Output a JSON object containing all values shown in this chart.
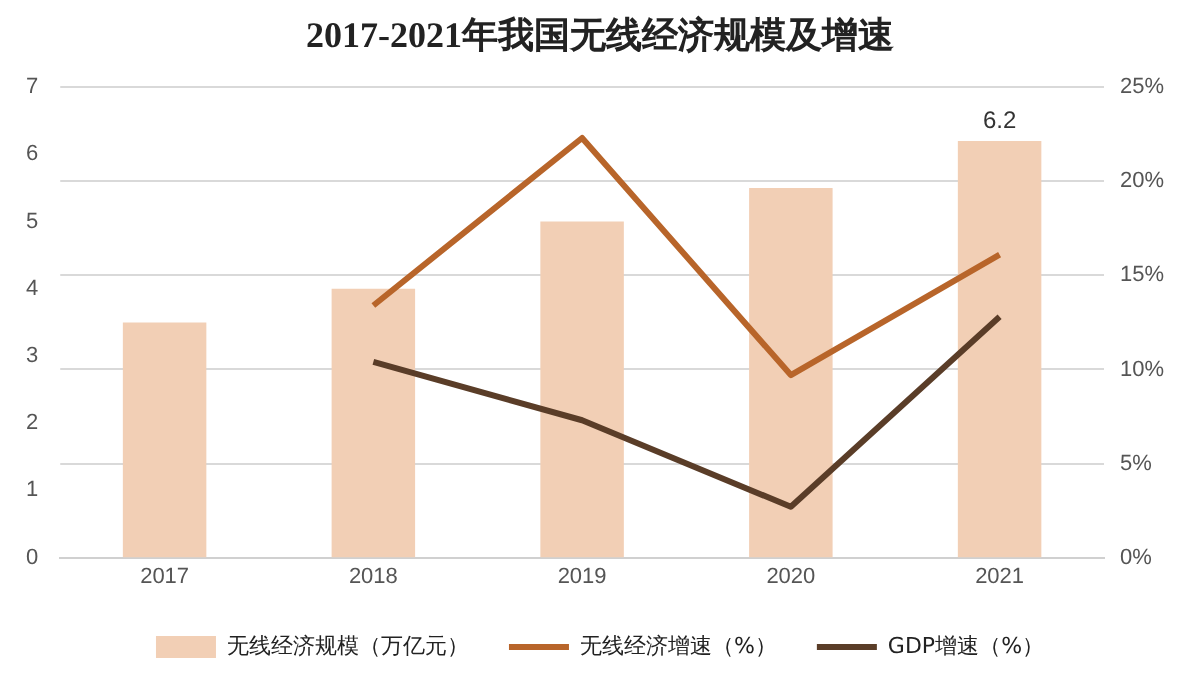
{
  "chart_data": {
    "type": "bar",
    "title": "2017-2021年我国无线经济规模及增速",
    "categories": [
      "2017",
      "2018",
      "2019",
      "2020",
      "2021"
    ],
    "series": [
      {
        "name": "无线经济规模（万亿元）",
        "color": "#f2cfb5",
        "values": [
          3.5,
          4.0,
          5.0,
          5.5,
          6.2
        ],
        "value_labels": [
          null,
          null,
          null,
          null,
          "6.2"
        ]
      },
      {
        "name": "无线经济增速（%）",
        "type": "line",
        "axis": "y2",
        "color": "#b8652a",
        "values": [
          null,
          13.4,
          22.3,
          9.7,
          16.1
        ]
      },
      {
        "name": "GDP增速（%）",
        "type": "line",
        "axis": "y2",
        "color": "#5a3d28",
        "values": [
          null,
          10.4,
          7.3,
          2.7,
          12.8
        ]
      }
    ],
    "ylim": [
      0,
      7
    ],
    "yticks": [
      0,
      1,
      2,
      3,
      4,
      5,
      6,
      7
    ],
    "y2lim": [
      0,
      25
    ],
    "y2ticks": [
      {
        "value": 0,
        "label": "0%"
      },
      {
        "value": 5,
        "label": "5%"
      },
      {
        "value": 10,
        "label": "10%"
      },
      {
        "value": 15,
        "label": "15%"
      },
      {
        "value": 20,
        "label": "20%"
      },
      {
        "value": 25,
        "label": "25%"
      }
    ],
    "grid": "y",
    "legend": "bottom",
    "marker": "none"
  }
}
